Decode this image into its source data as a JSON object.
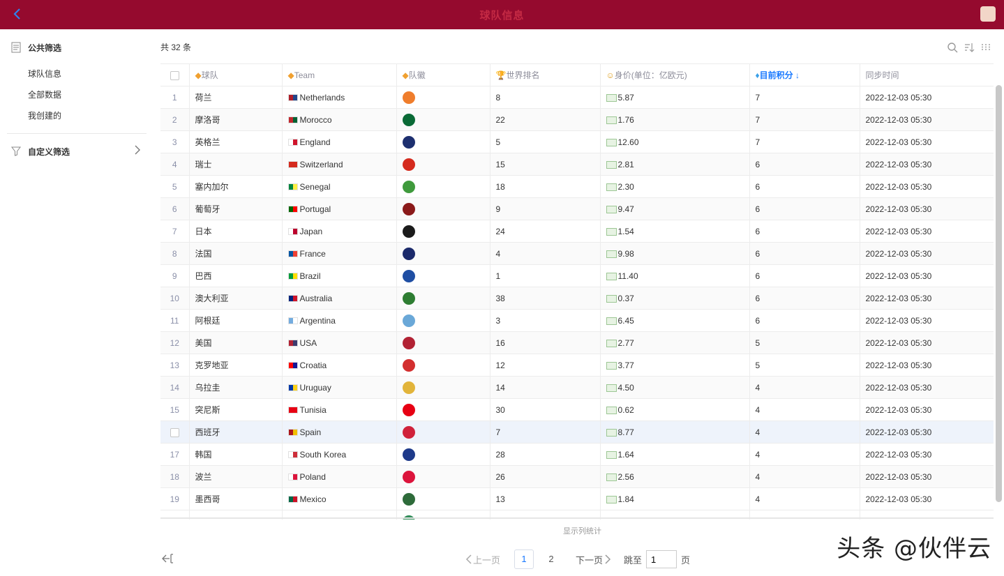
{
  "header": {
    "title": "球队信息"
  },
  "sidebar": {
    "public_filter": "公共筛选",
    "items": [
      {
        "label": "球队信息"
      },
      {
        "label": "全部数据"
      },
      {
        "label": "我创建的"
      }
    ],
    "custom_filter": "自定义筛选"
  },
  "toolbar": {
    "count": "共 32 条"
  },
  "table": {
    "columns": [
      "",
      "",
      "球队",
      "Team",
      "队徽",
      "世界排名",
      "身价(单位：亿欧元)",
      "目前积分",
      "同步时间"
    ],
    "column_icons": [
      "",
      "",
      "diamond-icon",
      "diamond-icon",
      "diamond-icon",
      "trophy-icon",
      "money-face-icon",
      "gem-icon",
      ""
    ],
    "sorted_column": "目前积分",
    "rows": [
      {
        "idx": "1",
        "cn": "荷兰",
        "en": "Netherlands",
        "rank": "8",
        "value": "5.87",
        "points": "7",
        "time": "2022-12-03 05:30",
        "c1": "#ae1c28",
        "c2": "#21468b",
        "badge": "#ef7d2c"
      },
      {
        "idx": "2",
        "cn": "摩洛哥",
        "en": "Morocco",
        "rank": "22",
        "value": "1.76",
        "points": "7",
        "time": "2022-12-03 05:30",
        "c1": "#c1272d",
        "c2": "#006233",
        "badge": "#0a6a36"
      },
      {
        "idx": "3",
        "cn": "英格兰",
        "en": "England",
        "rank": "5",
        "value": "12.60",
        "points": "7",
        "time": "2022-12-03 05:30",
        "c1": "#ffffff",
        "c2": "#cf142b",
        "badge": "#1d2f6f"
      },
      {
        "idx": "4",
        "cn": "瑞士",
        "en": "Switzerland",
        "rank": "15",
        "value": "2.81",
        "points": "6",
        "time": "2022-12-03 05:30",
        "c1": "#d52b1e",
        "c2": "#d52b1e",
        "badge": "#d52b1e"
      },
      {
        "idx": "5",
        "cn": "塞内加尔",
        "en": "Senegal",
        "rank": "18",
        "value": "2.30",
        "points": "6",
        "time": "2022-12-03 05:30",
        "c1": "#00853f",
        "c2": "#fdef42",
        "badge": "#3f9a3c"
      },
      {
        "idx": "6",
        "cn": "葡萄牙",
        "en": "Portugal",
        "rank": "9",
        "value": "9.47",
        "points": "6",
        "time": "2022-12-03 05:30",
        "c1": "#006600",
        "c2": "#ff0000",
        "badge": "#8b1a1a"
      },
      {
        "idx": "7",
        "cn": "日本",
        "en": "Japan",
        "rank": "24",
        "value": "1.54",
        "points": "6",
        "time": "2022-12-03 05:30",
        "c1": "#ffffff",
        "c2": "#bc002d",
        "badge": "#1b1b1b"
      },
      {
        "idx": "8",
        "cn": "法国",
        "en": "France",
        "rank": "4",
        "value": "9.98",
        "points": "6",
        "time": "2022-12-03 05:30",
        "c1": "#0055a4",
        "c2": "#ef4135",
        "badge": "#1b2a6b"
      },
      {
        "idx": "9",
        "cn": "巴西",
        "en": "Brazil",
        "rank": "1",
        "value": "11.40",
        "points": "6",
        "time": "2022-12-03 05:30",
        "c1": "#009c3b",
        "c2": "#ffdf00",
        "badge": "#1f4ea3"
      },
      {
        "idx": "10",
        "cn": "澳大利亚",
        "en": "Australia",
        "rank": "38",
        "value": "0.37",
        "points": "6",
        "time": "2022-12-03 05:30",
        "c1": "#00247d",
        "c2": "#cf142b",
        "badge": "#2e7d32"
      },
      {
        "idx": "11",
        "cn": "阿根廷",
        "en": "Argentina",
        "rank": "3",
        "value": "6.45",
        "points": "6",
        "time": "2022-12-03 05:30",
        "c1": "#74acdf",
        "c2": "#ffffff",
        "badge": "#6aa8d8"
      },
      {
        "idx": "12",
        "cn": "美国",
        "en": "USA",
        "rank": "16",
        "value": "2.77",
        "points": "5",
        "time": "2022-12-03 05:30",
        "c1": "#b22234",
        "c2": "#3c3b6e",
        "badge": "#b22234"
      },
      {
        "idx": "13",
        "cn": "克罗地亚",
        "en": "Croatia",
        "rank": "12",
        "value": "3.77",
        "points": "5",
        "time": "2022-12-03 05:30",
        "c1": "#ff0000",
        "c2": "#171796",
        "badge": "#d32f2f"
      },
      {
        "idx": "14",
        "cn": "乌拉圭",
        "en": "Uruguay",
        "rank": "14",
        "value": "4.50",
        "points": "4",
        "time": "2022-12-03 05:30",
        "c1": "#0038a8",
        "c2": "#fcd116",
        "badge": "#e2b43a"
      },
      {
        "idx": "15",
        "cn": "突尼斯",
        "en": "Tunisia",
        "rank": "30",
        "value": "0.62",
        "points": "4",
        "time": "2022-12-03 05:30",
        "c1": "#e70013",
        "c2": "#e70013",
        "badge": "#e70013"
      },
      {
        "idx": "",
        "cn": "西班牙",
        "en": "Spain",
        "rank": "7",
        "value": "8.77",
        "points": "4",
        "time": "2022-12-03 05:30",
        "c1": "#aa151b",
        "c2": "#f1bf00",
        "badge": "#d0213a"
      },
      {
        "idx": "17",
        "cn": "韩国",
        "en": "South Korea",
        "rank": "28",
        "value": "1.64",
        "points": "4",
        "time": "2022-12-03 05:30",
        "c1": "#ffffff",
        "c2": "#cd2e3a",
        "badge": "#1e3a8a"
      },
      {
        "idx": "18",
        "cn": "波兰",
        "en": "Poland",
        "rank": "26",
        "value": "2.56",
        "points": "4",
        "time": "2022-12-03 05:30",
        "c1": "#ffffff",
        "c2": "#dc143c",
        "badge": "#dc143c"
      },
      {
        "idx": "19",
        "cn": "墨西哥",
        "en": "Mexico",
        "rank": "13",
        "value": "1.84",
        "points": "4",
        "time": "2022-12-03 05:30",
        "c1": "#006847",
        "c2": "#ce1126",
        "badge": "#2e6b3a"
      }
    ],
    "partial_row_badge": "#2e8b57"
  },
  "footer": {
    "stats_label": "显示列统计",
    "prev_label": "上一页",
    "next_label": "下一页",
    "pages": [
      "1",
      "2"
    ],
    "current_page": "1",
    "jump_label": "跳至",
    "page_suffix": "页"
  },
  "watermark": "头条 @伙伴云",
  "colors": {
    "brand": "#950a2e",
    "accent": "#1677ff"
  }
}
